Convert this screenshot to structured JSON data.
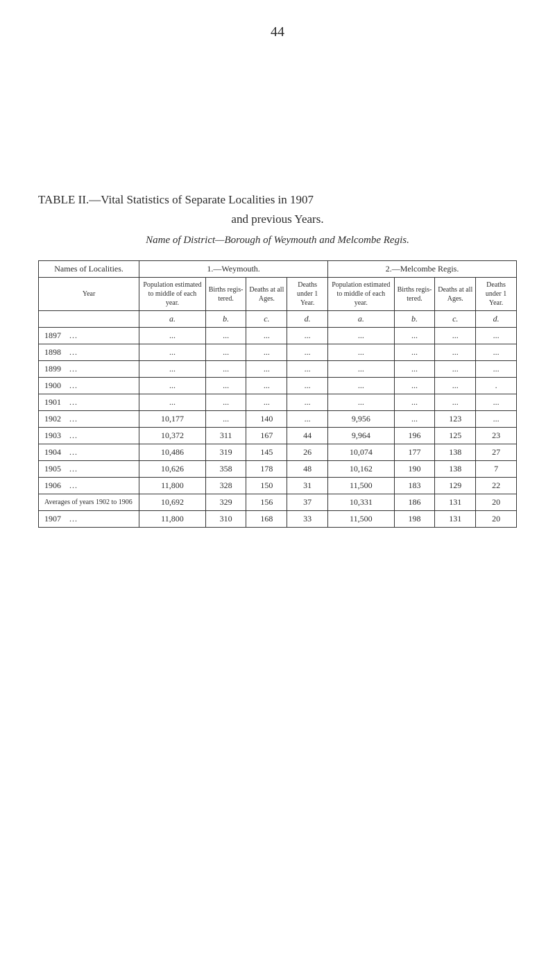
{
  "page_number": "44",
  "header": {
    "table_label": "TABLE II.—",
    "main_title": "Vital Statistics of Separate Localities in 1907",
    "sub_title": "and previous Years.",
    "name_line": "Name of District—Borough of Weymouth and Melcombe Regis."
  },
  "table": {
    "top_headings": {
      "localities": "Names of Localities.",
      "weymouth": "1.—Weymouth.",
      "melcombe": "2.—Melcombe Regis."
    },
    "sub_headings": {
      "year": "Year",
      "population": "Population estimated to middle of each year.",
      "births": "Births regis- tered.",
      "deaths_all": "Deaths at all Ages.",
      "deaths_under": "Deaths under 1 Year."
    },
    "letter_row": [
      "a.",
      "b.",
      "c.",
      "d.",
      "a.",
      "b.",
      "c.",
      "d."
    ],
    "rows": [
      {
        "year": "1897",
        "dots": "...",
        "w_pop": "...",
        "w_b": "...",
        "w_da": "...",
        "w_du": "...",
        "m_pop": "...",
        "m_b": "...",
        "m_da": "...",
        "m_du": "..."
      },
      {
        "year": "1898",
        "dots": "...",
        "w_pop": "...",
        "w_b": "...",
        "w_da": "...",
        "w_du": "...",
        "m_pop": "...",
        "m_b": "...",
        "m_da": "...",
        "m_du": "..."
      },
      {
        "year": "1899",
        "dots": "...",
        "w_pop": "...",
        "w_b": "...",
        "w_da": "...",
        "w_du": "...",
        "m_pop": "...",
        "m_b": "...",
        "m_da": "...",
        "m_du": "..."
      },
      {
        "year": "1900",
        "dots": "...",
        "w_pop": "...",
        "w_b": "...",
        "w_da": "...",
        "w_du": "...",
        "m_pop": "...",
        "m_b": "...",
        "m_da": "...",
        "m_du": "."
      },
      {
        "year": "1901",
        "dots": "...",
        "w_pop": "...",
        "w_b": "...",
        "w_da": "...",
        "w_du": "...",
        "m_pop": "...",
        "m_b": "...",
        "m_da": "...",
        "m_du": "..."
      },
      {
        "year": "1902",
        "dots": "...",
        "w_pop": "10,177",
        "w_b": "...",
        "w_da": "140",
        "w_du": "...",
        "m_pop": "9,956",
        "m_b": "...",
        "m_da": "123",
        "m_du": "..."
      },
      {
        "year": "1903",
        "dots": "...",
        "w_pop": "10,372",
        "w_b": "311",
        "w_da": "167",
        "w_du": "44",
        "m_pop": "9,964",
        "m_b": "196",
        "m_da": "125",
        "m_du": "23"
      },
      {
        "year": "1904",
        "dots": "...",
        "w_pop": "10,486",
        "w_b": "319",
        "w_da": "145",
        "w_du": "26",
        "m_pop": "10,074",
        "m_b": "177",
        "m_da": "138",
        "m_du": "27"
      },
      {
        "year": "1905",
        "dots": "...",
        "w_pop": "10,626",
        "w_b": "358",
        "w_da": "178",
        "w_du": "48",
        "m_pop": "10,162",
        "m_b": "190",
        "m_da": "138",
        "m_du": "7"
      },
      {
        "year": "1906",
        "dots": "...",
        "w_pop": "11,800",
        "w_b": "328",
        "w_da": "150",
        "w_du": "31",
        "m_pop": "11,500",
        "m_b": "183",
        "m_da": "129",
        "m_du": "22"
      }
    ],
    "averages": {
      "label": "Averages of years 1902 to 1906",
      "w_pop": "10,692",
      "w_b": "329",
      "w_da": "156",
      "w_du": "37",
      "m_pop": "10,331",
      "m_b": "186",
      "m_da": "131",
      "m_du": "20"
    },
    "final": {
      "year": "1907",
      "dots": "...",
      "w_pop": "11,800",
      "w_b": "310",
      "w_da": "168",
      "w_du": "33",
      "m_pop": "11,500",
      "m_b": "198",
      "m_da": "131",
      "m_du": "20"
    }
  },
  "style": {
    "background_color": "#ffffff",
    "text_color": "#2a2a2a",
    "border_color": "#333333",
    "title_fontsize": 17,
    "body_fontsize": 12,
    "subhead_fontsize": 10
  }
}
